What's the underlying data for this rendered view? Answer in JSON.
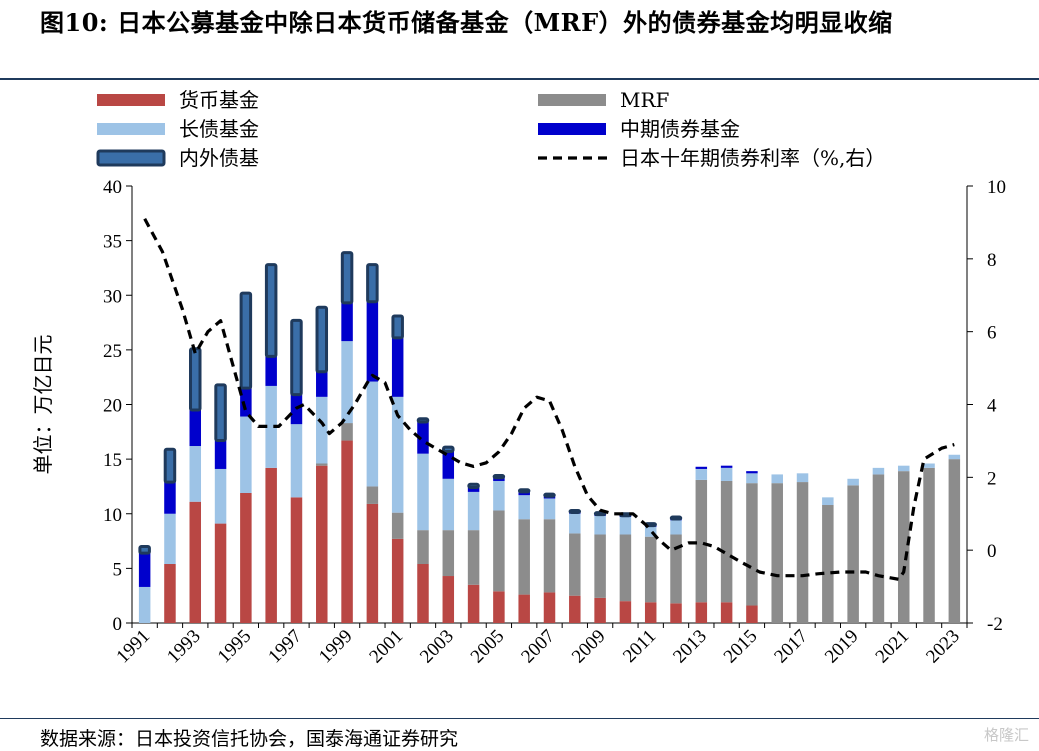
{
  "title": "图10:  日本公募基金中除日本货币储备基金（MRF）外的债券基金均明显收缩",
  "source": "数据来源：日本投资信托协会，国泰海通证券研究",
  "watermark": "格隆汇",
  "chart_data": {
    "type": "bar",
    "stacked": true,
    "categories": [
      1991,
      1992,
      1993,
      1994,
      1995,
      1996,
      1997,
      1998,
      1999,
      2000,
      2001,
      2002,
      2003,
      2004,
      2005,
      2006,
      2007,
      2008,
      2009,
      2010,
      2011,
      2012,
      2013,
      2014,
      2015,
      2016,
      2017,
      2018,
      2019,
      2020,
      2021,
      2022,
      2023
    ],
    "x_tick_labels": [
      "1991",
      "1993",
      "1995",
      "1997",
      "1999",
      "2001",
      "2003",
      "2005",
      "2007",
      "2009",
      "2011",
      "2013",
      "2015",
      "2017",
      "2019",
      "2021",
      "2023"
    ],
    "ylabel": "单位：万亿日元",
    "ylim": [
      0,
      40
    ],
    "y_ticks": [
      0,
      5,
      10,
      15,
      20,
      25,
      30,
      35,
      40
    ],
    "y2lim": [
      -2,
      10
    ],
    "y2_ticks": [
      -2,
      0,
      2,
      4,
      6,
      8,
      10
    ],
    "grid": false,
    "legend_position": "top",
    "series": [
      {
        "name": "货币基金",
        "color": "#b94744",
        "values": [
          0,
          5.4,
          11.1,
          9.1,
          11.9,
          14.2,
          11.5,
          14.4,
          16.7,
          10.9,
          7.7,
          5.4,
          4.3,
          3.5,
          2.9,
          2.6,
          2.8,
          2.5,
          2.3,
          2.0,
          1.9,
          1.8,
          1.9,
          1.9,
          1.6,
          0,
          0,
          0,
          0,
          0,
          0,
          0,
          0
        ]
      },
      {
        "name": "MRF",
        "color": "#8c8c8c",
        "values": [
          0,
          0,
          0,
          0,
          0,
          0,
          0,
          0.2,
          1.6,
          1.6,
          2.4,
          3.1,
          4.2,
          5.0,
          7.4,
          6.9,
          6.7,
          5.7,
          5.8,
          6.1,
          6.0,
          6.3,
          11.2,
          11.1,
          11.2,
          12.8,
          12.9,
          10.8,
          12.6,
          13.6,
          13.9,
          14.2,
          15.0
        ]
      },
      {
        "name": "长债基金",
        "color": "#9dc3e6",
        "values": [
          3.3,
          4.6,
          5.1,
          5.0,
          7.0,
          7.5,
          6.7,
          6.1,
          7.5,
          9.6,
          10.6,
          7.0,
          4.7,
          3.5,
          2.7,
          2.2,
          1.9,
          1.8,
          1.7,
          1.6,
          0.9,
          1.3,
          1.0,
          1.2,
          0.9,
          0.8,
          0.8,
          0.7,
          0.6,
          0.6,
          0.5,
          0.4,
          0.4
        ]
      },
      {
        "name": "中期债券基金",
        "color": "#0000cc",
        "values": [
          3.1,
          2.9,
          3.3,
          2.6,
          2.6,
          2.7,
          2.7,
          2.3,
          3.5,
          7.3,
          5.4,
          2.9,
          2.5,
          0.4,
          0.3,
          0.3,
          0.2,
          0.2,
          0.2,
          0.2,
          0.2,
          0.2,
          0.2,
          0.2,
          0.2,
          0,
          0,
          0,
          0,
          0,
          0,
          0,
          0
        ]
      },
      {
        "name": "内外债基",
        "color": "#3a6ea8",
        "values": [
          0.6,
          3.0,
          5.6,
          5.1,
          8.7,
          8.4,
          6.8,
          5.9,
          4.6,
          3.4,
          2.0,
          0.3,
          0.4,
          0.3,
          0.2,
          0.2,
          0.2,
          0.1,
          0.1,
          0.1,
          0.1,
          0.1,
          0,
          0,
          0,
          0,
          0,
          0,
          0,
          0,
          0,
          0,
          0
        ]
      }
    ],
    "line": {
      "name": "日本十年期债券利率（%,右）",
      "axis": "right",
      "style": "dashed",
      "color": "#000000",
      "points": [
        [
          1991.0,
          9.1
        ],
        [
          1991.7,
          8.2
        ],
        [
          1992.5,
          6.6
        ],
        [
          1993.0,
          5.4
        ],
        [
          1993.5,
          6.0
        ],
        [
          1994.0,
          6.3
        ],
        [
          1994.4,
          5.3
        ],
        [
          1995.0,
          3.8
        ],
        [
          1995.5,
          3.4
        ],
        [
          1996.3,
          3.4
        ],
        [
          1997.0,
          3.9
        ],
        [
          1997.3,
          4.0
        ],
        [
          1998.0,
          3.5
        ],
        [
          1998.3,
          3.2
        ],
        [
          1998.8,
          3.5
        ],
        [
          1999.3,
          4.0
        ],
        [
          1999.8,
          4.6
        ],
        [
          2000.0,
          4.8
        ],
        [
          2000.5,
          4.6
        ],
        [
          2001.0,
          3.7
        ],
        [
          2001.5,
          3.3
        ],
        [
          2002.0,
          3.0
        ],
        [
          2002.5,
          2.8
        ],
        [
          2003.0,
          2.6
        ],
        [
          2003.5,
          2.4
        ],
        [
          2004.0,
          2.3
        ],
        [
          2004.5,
          2.4
        ],
        [
          2005.0,
          2.7
        ],
        [
          2005.5,
          3.2
        ],
        [
          2006.0,
          3.9
        ],
        [
          2006.5,
          4.2
        ],
        [
          2007.0,
          4.1
        ],
        [
          2007.5,
          3.3
        ],
        [
          2008.0,
          2.3
        ],
        [
          2008.5,
          1.5
        ],
        [
          2009.0,
          1.1
        ],
        [
          2009.5,
          1.0
        ],
        [
          2010.3,
          1.0
        ],
        [
          2010.8,
          0.7
        ],
        [
          2011.3,
          0.3
        ],
        [
          2011.8,
          0.0
        ],
        [
          2012.5,
          0.2
        ],
        [
          2013.0,
          0.2
        ],
        [
          2013.5,
          0.1
        ],
        [
          2014.5,
          -0.3
        ],
        [
          2015.3,
          -0.6
        ],
        [
          2016.0,
          -0.7
        ],
        [
          2017.0,
          -0.7
        ],
        [
          2017.6,
          -0.65
        ],
        [
          2018.5,
          -0.6
        ],
        [
          2019.5,
          -0.6
        ],
        [
          2020.0,
          -0.7
        ],
        [
          2020.8,
          -0.8
        ],
        [
          2021.0,
          -0.6
        ],
        [
          2021.4,
          1.2
        ],
        [
          2021.8,
          2.5
        ],
        [
          2022.5,
          2.8
        ],
        [
          2023.0,
          2.9
        ]
      ]
    }
  }
}
